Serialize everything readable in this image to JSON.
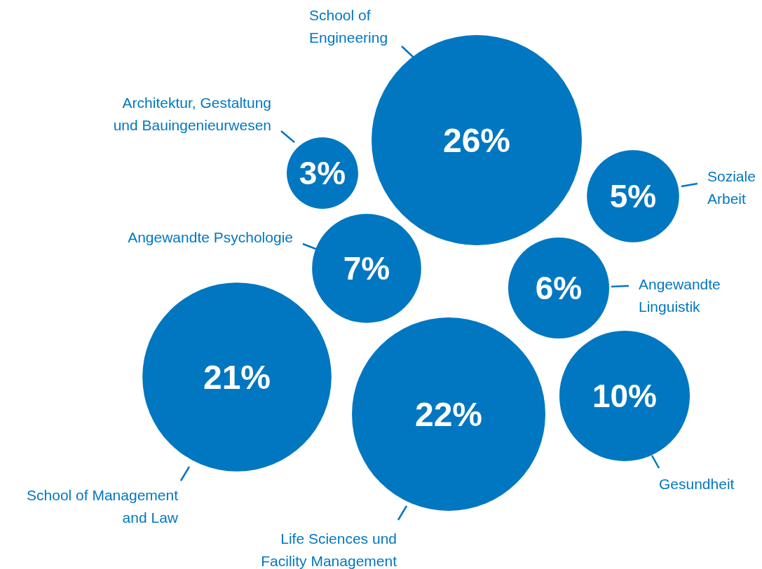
{
  "chart_data": {
    "type": "other",
    "categories": [
      "School of Engineering",
      "Architektur, Gestaltung und Bauingenieurwesen",
      "Soziale Arbeit",
      "Angewandte Psychologie",
      "Angewandte Linguistik",
      "School of Management and Law",
      "Life Sciences und Facility Management",
      "Gesundheit"
    ],
    "values": [
      26,
      3,
      5,
      7,
      6,
      21,
      22,
      10
    ],
    "value_labels": [
      "26%",
      "3%",
      "5%",
      "7%",
      "6%",
      "21%",
      "22%",
      "10%"
    ],
    "color": "#0077c0"
  }
}
